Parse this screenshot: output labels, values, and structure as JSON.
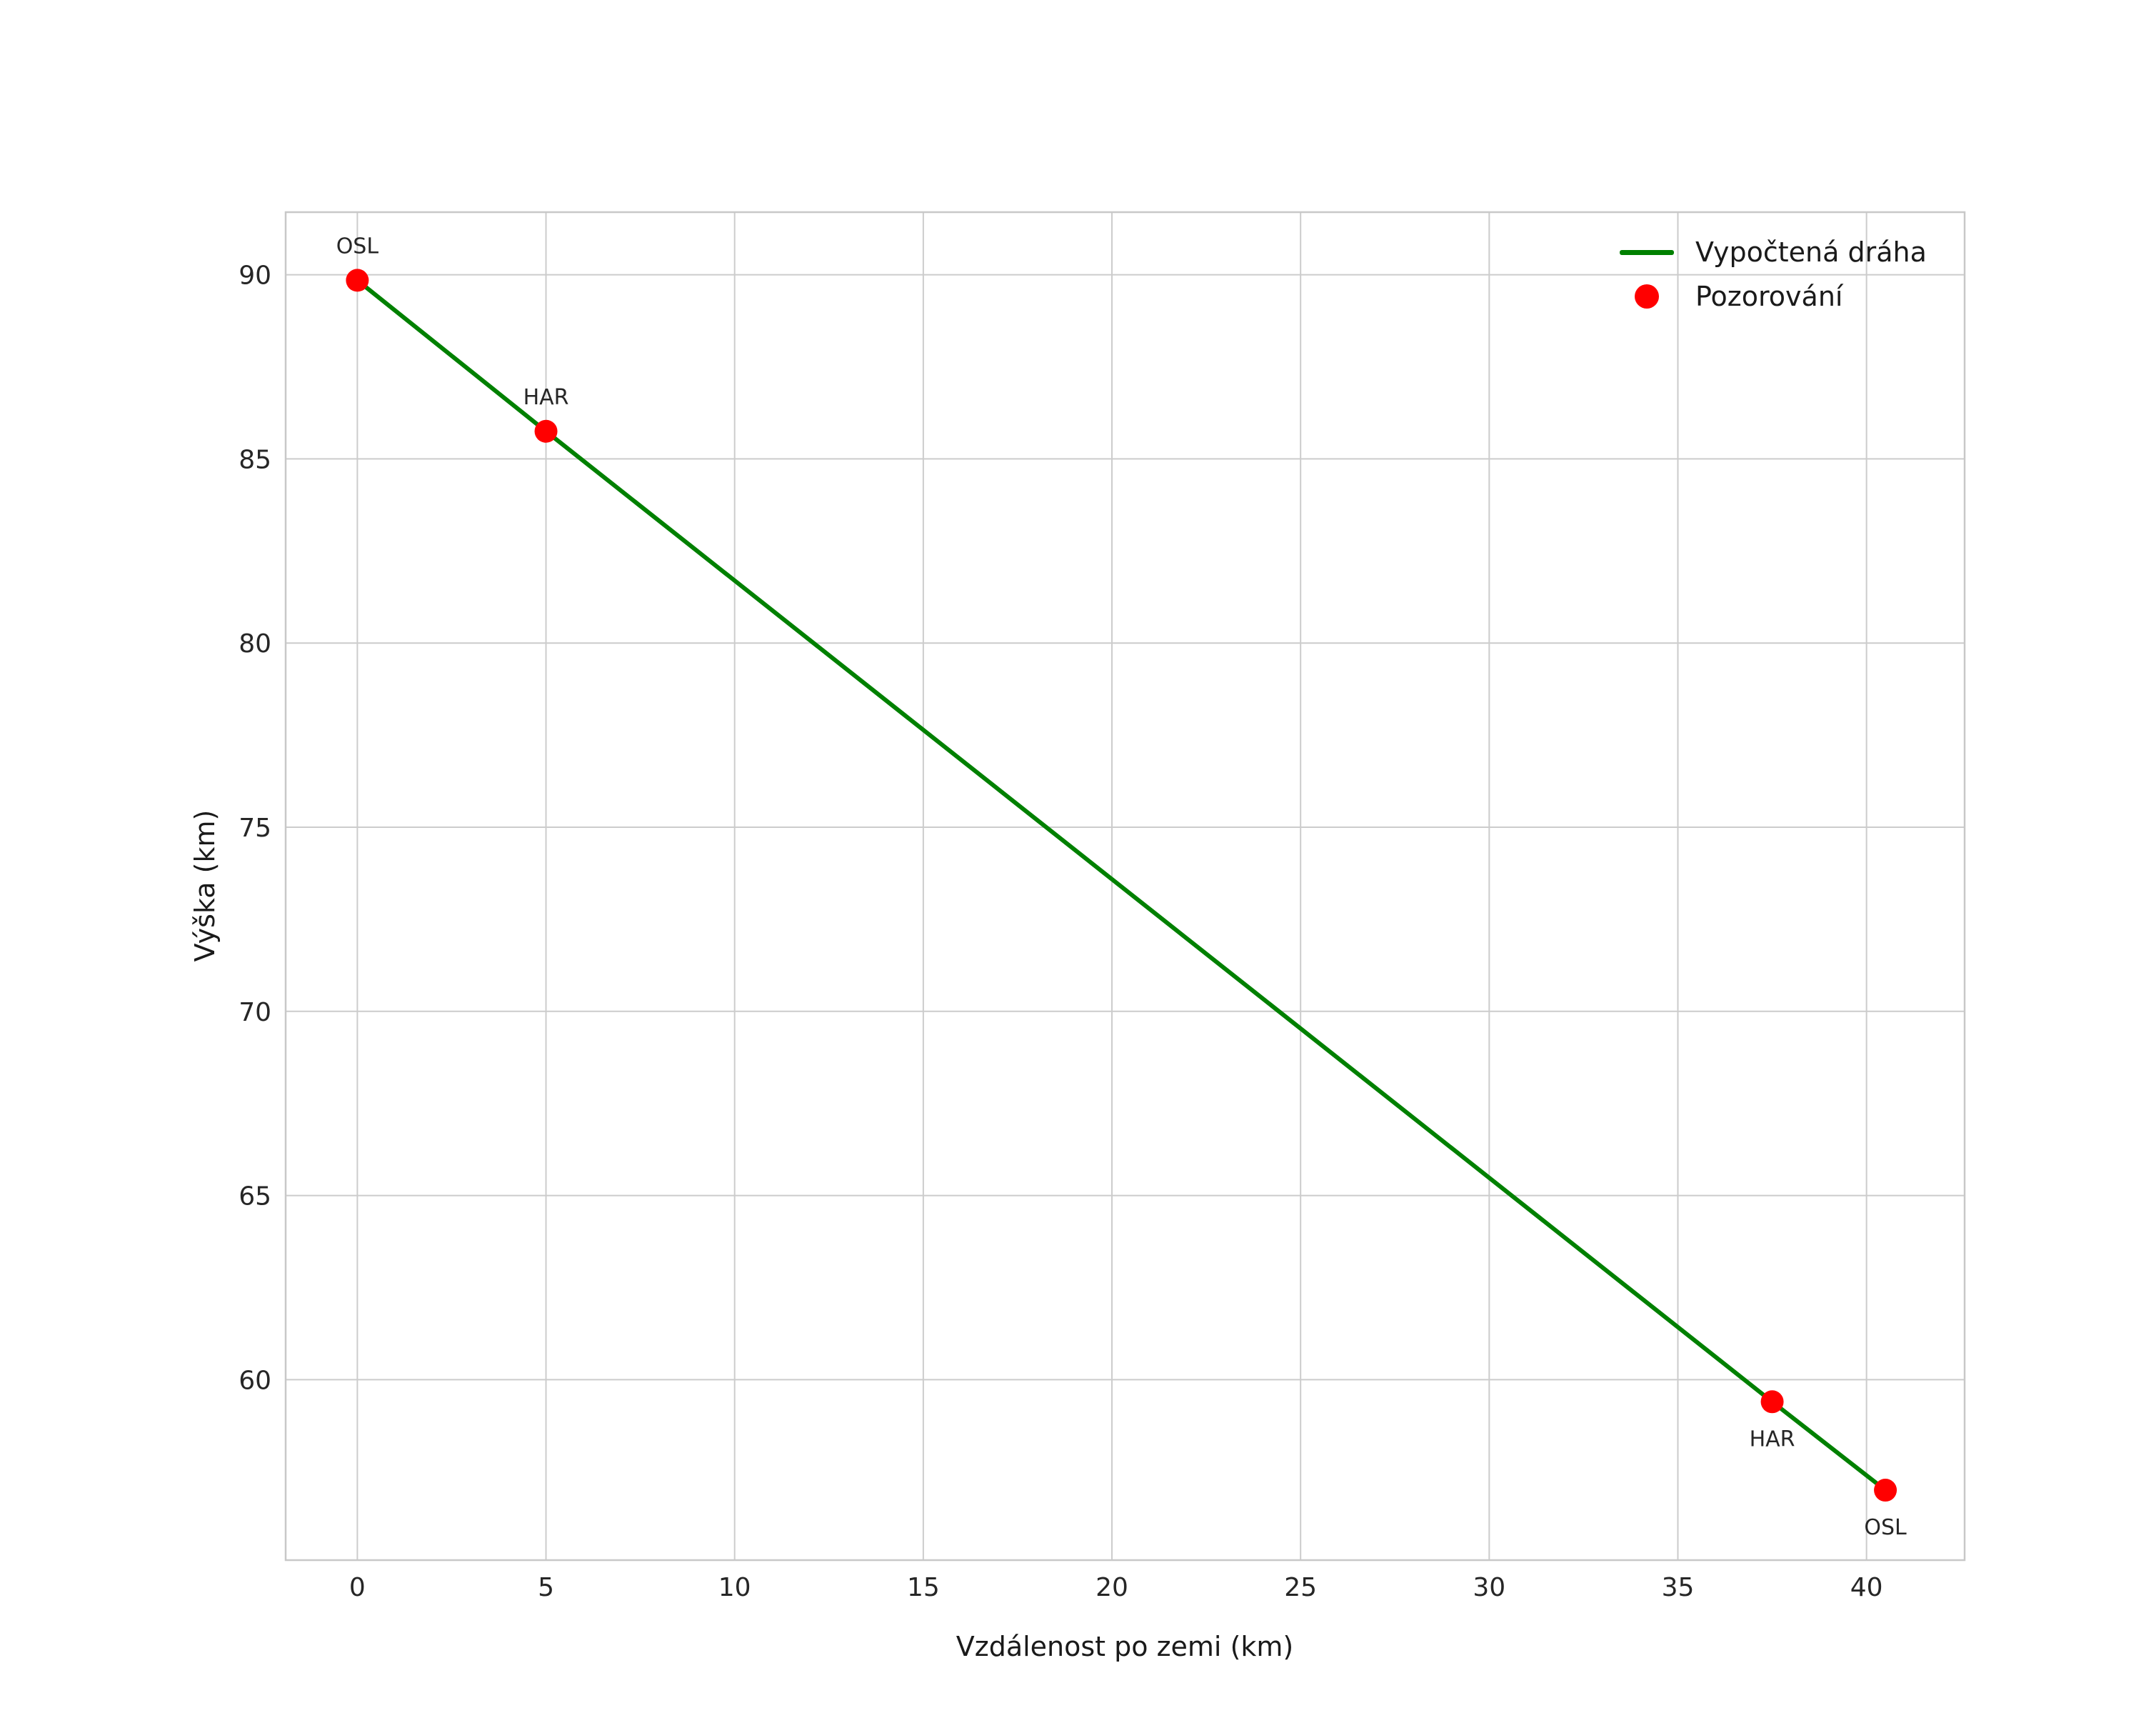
{
  "chart_data": {
    "type": "line",
    "xlabel": "Vzdálenost po zemi (km)",
    "ylabel": "Výška (km)",
    "xlim": [
      -1.9,
      42.6
    ],
    "ylim": [
      55.1,
      91.7
    ],
    "x_ticks": [
      0,
      5,
      10,
      15,
      20,
      25,
      30,
      35,
      40
    ],
    "y_ticks": [
      60,
      65,
      70,
      75,
      80,
      85,
      90
    ],
    "grid": true,
    "colors": {
      "line": "#008000",
      "marker": "#ff0000",
      "grid": "#cccccc",
      "frame": "#c8c8c8",
      "background": "#ffffff"
    },
    "legend": {
      "position": "top-right",
      "entries": [
        {
          "type": "line",
          "color": "#008000",
          "label": "Vypočtená dráha"
        },
        {
          "type": "dot",
          "color": "#ff0000",
          "label": "Pozorování"
        }
      ]
    },
    "series": [
      {
        "name": "Vypočtená dráha",
        "type": "line",
        "color": "#008000",
        "points": [
          [
            0,
            89.85
          ],
          [
            5,
            85.75
          ],
          [
            37.5,
            59.4
          ],
          [
            40.5,
            57.0
          ]
        ]
      },
      {
        "name": "Pozorování",
        "type": "scatter",
        "color": "#ff0000",
        "points": [
          [
            0,
            89.85
          ],
          [
            5,
            85.75
          ],
          [
            37.5,
            59.4
          ],
          [
            40.5,
            57.0
          ]
        ]
      }
    ],
    "annotations": [
      {
        "text": "OSL",
        "x": 0,
        "y": 89.85,
        "placement": "above"
      },
      {
        "text": "HAR",
        "x": 5,
        "y": 85.75,
        "placement": "above"
      },
      {
        "text": "HAR",
        "x": 37.5,
        "y": 59.4,
        "placement": "below"
      },
      {
        "text": "OSL",
        "x": 40.5,
        "y": 57.0,
        "placement": "below"
      }
    ]
  }
}
